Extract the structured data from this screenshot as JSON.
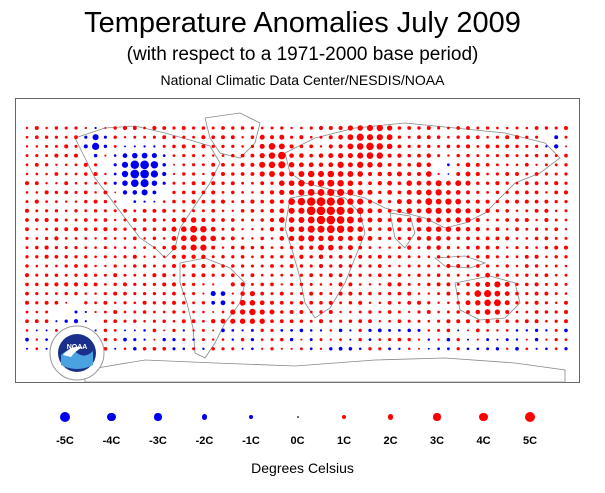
{
  "title": "Temperature Anomalies July 2009",
  "subtitle": "(with respect to a 1971-2000 base period)",
  "source": "National Climatic Data Center/NESDIS/NOAA",
  "logo_text": "NOAA",
  "legend": {
    "items": [
      {
        "label": "-5C",
        "value": -5
      },
      {
        "label": "-4C",
        "value": -4
      },
      {
        "label": "-3C",
        "value": -3
      },
      {
        "label": "-2C",
        "value": -2
      },
      {
        "label": "-1C",
        "value": -1
      },
      {
        "label": "0C",
        "value": 0
      },
      {
        "label": "1C",
        "value": 1
      },
      {
        "label": "2C",
        "value": 2
      },
      {
        "label": "3C",
        "value": 3
      },
      {
        "label": "4C",
        "value": 4
      },
      {
        "label": "5C",
        "value": 5
      }
    ],
    "units": "Degrees Celsius"
  },
  "colors": {
    "warm": "#ff0000",
    "cold": "#0000ee",
    "land_outline": "#888888",
    "frame": "#666666"
  }
}
